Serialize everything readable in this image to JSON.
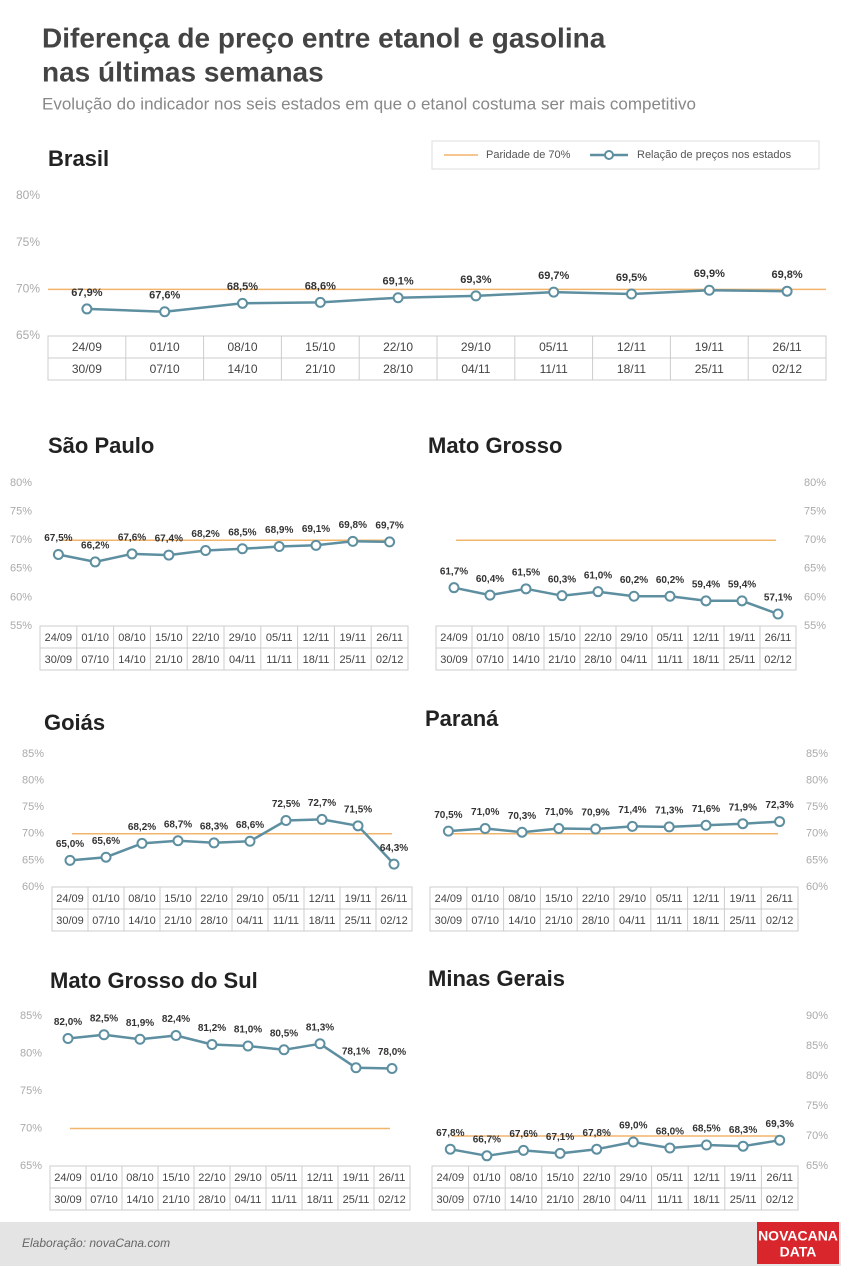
{
  "title": [
    "Diferença de preço entre etanol e gasolina",
    "nas últimas semanas"
  ],
  "subtitle": "Evolução do indicador nos seis estados em que o etanol costuma ser mais competitivo",
  "source": "Elaboração: novaCana.com",
  "logo": [
    "NOVACANA",
    "DATA"
  ],
  "line_color": "#5d8fa0",
  "reference_color": "#f2b46a",
  "chart_data": [
    {
      "type": "line",
      "title": "Brasil",
      "axis": "left",
      "legend": [
        "Paridade de 70%",
        "Relação de preços nos estados"
      ],
      "categories": [
        [
          "24/09",
          "30/09"
        ],
        [
          "01/10",
          "07/10"
        ],
        [
          "08/10",
          "14/10"
        ],
        [
          "15/10",
          "21/10"
        ],
        [
          "22/10",
          "28/10"
        ],
        [
          "29/10",
          "04/11"
        ],
        [
          "05/11",
          "11/11"
        ],
        [
          "12/11",
          "18/11"
        ],
        [
          "19/11",
          "25/11"
        ],
        [
          "26/11",
          "02/12"
        ]
      ],
      "reference": 70,
      "values": [
        67.9,
        67.6,
        68.5,
        68.6,
        69.1,
        69.3,
        69.7,
        69.5,
        69.9,
        69.8
      ],
      "value_labels": [
        "67,9%",
        "67,6%",
        "68,5%",
        "68,6%",
        "69,1%",
        "69,3%",
        "69,7%",
        "69,5%",
        "69,9%",
        "69,8%"
      ],
      "ylim": [
        65,
        80
      ],
      "yticks": [
        {
          "value": 65,
          "label": "65%"
        },
        {
          "value": 70,
          "label": "70%"
        },
        {
          "value": 75,
          "label": "75%"
        },
        {
          "value": 80,
          "label": "80%"
        }
      ]
    },
    {
      "type": "line",
      "title": "São Paulo",
      "axis": "left",
      "categories": [
        [
          "24/09",
          "30/09"
        ],
        [
          "01/10",
          "07/10"
        ],
        [
          "08/10",
          "14/10"
        ],
        [
          "15/10",
          "21/10"
        ],
        [
          "22/10",
          "28/10"
        ],
        [
          "29/10",
          "04/11"
        ],
        [
          "05/11",
          "11/11"
        ],
        [
          "12/11",
          "18/11"
        ],
        [
          "19/11",
          "25/11"
        ],
        [
          "26/11",
          "02/12"
        ]
      ],
      "reference": 70,
      "values": [
        67.5,
        66.2,
        67.6,
        67.4,
        68.2,
        68.5,
        68.9,
        69.1,
        69.8,
        69.7
      ],
      "value_labels": [
        "67,5%",
        "66,2%",
        "67,6%",
        "67,4%",
        "68,2%",
        "68,5%",
        "68,9%",
        "69,1%",
        "69,8%",
        "69,7%"
      ],
      "ylim": [
        55,
        80
      ],
      "yticks": [
        {
          "value": 55,
          "label": "55%"
        },
        {
          "value": 60,
          "label": "60%"
        },
        {
          "value": 65,
          "label": "65%"
        },
        {
          "value": 70,
          "label": "70%"
        },
        {
          "value": 75,
          "label": "75%"
        },
        {
          "value": 80,
          "label": "80%"
        }
      ]
    },
    {
      "type": "line",
      "title": "Mato Grosso",
      "axis": "right",
      "categories": [
        [
          "24/09",
          "30/09"
        ],
        [
          "01/10",
          "07/10"
        ],
        [
          "08/10",
          "14/10"
        ],
        [
          "15/10",
          "21/10"
        ],
        [
          "22/10",
          "28/10"
        ],
        [
          "29/10",
          "04/11"
        ],
        [
          "05/11",
          "11/11"
        ],
        [
          "12/11",
          "18/11"
        ],
        [
          "19/11",
          "25/11"
        ],
        [
          "26/11",
          "02/12"
        ]
      ],
      "reference": 70,
      "values": [
        61.7,
        60.4,
        61.5,
        60.3,
        61.0,
        60.2,
        60.2,
        59.4,
        59.4,
        57.1
      ],
      "value_labels": [
        "61,7%",
        "60,4%",
        "61,5%",
        "60,3%",
        "61,0%",
        "60,2%",
        "60,2%",
        "59,4%",
        "59,4%",
        "57,1%"
      ],
      "ylim": [
        55,
        80
      ],
      "yticks": [
        {
          "value": 55,
          "label": "55%"
        },
        {
          "value": 60,
          "label": "60%"
        },
        {
          "value": 65,
          "label": "65%"
        },
        {
          "value": 70,
          "label": "70%"
        },
        {
          "value": 75,
          "label": "75%"
        },
        {
          "value": 80,
          "label": "80%"
        }
      ]
    },
    {
      "type": "line",
      "title": "Goiás",
      "axis": "left",
      "categories": [
        [
          "24/09",
          "30/09"
        ],
        [
          "01/10",
          "07/10"
        ],
        [
          "08/10",
          "14/10"
        ],
        [
          "15/10",
          "21/10"
        ],
        [
          "22/10",
          "28/10"
        ],
        [
          "29/10",
          "04/11"
        ],
        [
          "05/11",
          "11/11"
        ],
        [
          "12/11",
          "18/11"
        ],
        [
          "19/11",
          "25/11"
        ],
        [
          "26/11",
          "02/12"
        ]
      ],
      "reference": 70,
      "values": [
        65.0,
        65.6,
        68.2,
        68.7,
        68.3,
        68.6,
        72.5,
        72.7,
        71.5,
        64.3
      ],
      "value_labels": [
        "65,0%",
        "65,6%",
        "68,2%",
        "68,7%",
        "68,3%",
        "68,6%",
        "72,5%",
        "72,7%",
        "71,5%",
        "64,3%"
      ],
      "ylim": [
        60,
        85
      ],
      "yticks": [
        {
          "value": 60,
          "label": "60%"
        },
        {
          "value": 65,
          "label": "65%"
        },
        {
          "value": 70,
          "label": "70%"
        },
        {
          "value": 75,
          "label": "75%"
        },
        {
          "value": 80,
          "label": "80%"
        },
        {
          "value": 85,
          "label": "85%"
        }
      ]
    },
    {
      "type": "line",
      "title": "Paraná",
      "axis": "right",
      "categories": [
        [
          "24/09",
          "30/09"
        ],
        [
          "01/10",
          "07/10"
        ],
        [
          "08/10",
          "14/10"
        ],
        [
          "15/10",
          "21/10"
        ],
        [
          "22/10",
          "28/10"
        ],
        [
          "29/10",
          "04/11"
        ],
        [
          "05/11",
          "11/11"
        ],
        [
          "12/11",
          "18/11"
        ],
        [
          "19/11",
          "25/11"
        ],
        [
          "26/11",
          "02/12"
        ]
      ],
      "reference": 70,
      "values": [
        70.5,
        71.0,
        70.3,
        71.0,
        70.9,
        71.4,
        71.3,
        71.6,
        71.9,
        72.3
      ],
      "value_labels": [
        "70,5%",
        "71,0%",
        "70,3%",
        "71,0%",
        "70,9%",
        "71,4%",
        "71,3%",
        "71,6%",
        "71,9%",
        "72,3%"
      ],
      "ylim": [
        60,
        85
      ],
      "yticks": [
        {
          "value": 60,
          "label": "60%"
        },
        {
          "value": 65,
          "label": "65%"
        },
        {
          "value": 70,
          "label": "70%"
        },
        {
          "value": 75,
          "label": "75%"
        },
        {
          "value": 80,
          "label": "80%"
        },
        {
          "value": 85,
          "label": "85%"
        }
      ]
    },
    {
      "type": "line",
      "title": "Mato Grosso do Sul",
      "axis": "left",
      "categories": [
        [
          "24/09",
          "30/09"
        ],
        [
          "01/10",
          "07/10"
        ],
        [
          "08/10",
          "14/10"
        ],
        [
          "15/10",
          "21/10"
        ],
        [
          "22/10",
          "28/10"
        ],
        [
          "29/10",
          "04/11"
        ],
        [
          "05/11",
          "11/11"
        ],
        [
          "12/11",
          "18/11"
        ],
        [
          "19/11",
          "25/11"
        ],
        [
          "26/11",
          "02/12"
        ]
      ],
      "reference": 70,
      "values": [
        82.0,
        82.5,
        81.9,
        82.4,
        81.2,
        81.0,
        80.5,
        81.3,
        78.1,
        78.0
      ],
      "value_labels": [
        "82,0%",
        "82,5%",
        "81,9%",
        "82,4%",
        "81,2%",
        "81,0%",
        "80,5%",
        "81,3%",
        "78,1%",
        "78,0%"
      ],
      "ylim": [
        65,
        85
      ],
      "yticks": [
        {
          "value": 65,
          "label": "65%"
        },
        {
          "value": 70,
          "label": "70%"
        },
        {
          "value": 75,
          "label": "75%"
        },
        {
          "value": 80,
          "label": "80%"
        },
        {
          "value": 85,
          "label": "85%"
        }
      ]
    },
    {
      "type": "line",
      "title": "Minas Gerais",
      "axis": "right",
      "categories": [
        [
          "24/09",
          "30/09"
        ],
        [
          "01/10",
          "07/10"
        ],
        [
          "08/10",
          "14/10"
        ],
        [
          "15/10",
          "21/10"
        ],
        [
          "22/10",
          "28/10"
        ],
        [
          "29/10",
          "04/11"
        ],
        [
          "05/11",
          "11/11"
        ],
        [
          "12/11",
          "18/11"
        ],
        [
          "19/11",
          "25/11"
        ],
        [
          "26/11",
          "02/12"
        ]
      ],
      "reference": 70,
      "values": [
        67.8,
        66.7,
        67.6,
        67.1,
        67.8,
        69.0,
        68.0,
        68.5,
        68.3,
        69.3
      ],
      "value_labels": [
        "67,8%",
        "66,7%",
        "67,6%",
        "67,1%",
        "67,8%",
        "69,0%",
        "68,0%",
        "68,5%",
        "68,3%",
        "69,3%"
      ],
      "ylim": [
        65,
        90
      ],
      "yticks": [
        {
          "value": 65,
          "label": "65%"
        },
        {
          "value": 70,
          "label": "70%"
        },
        {
          "value": 75,
          "label": "75%"
        },
        {
          "value": 80,
          "label": "80%"
        },
        {
          "value": 85,
          "label": "85%"
        },
        {
          "value": 90,
          "label": "90%"
        }
      ]
    }
  ]
}
